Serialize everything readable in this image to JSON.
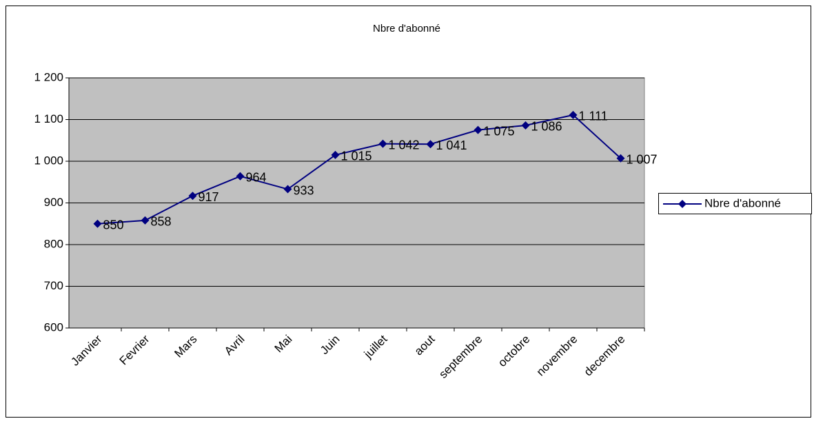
{
  "chart_data": {
    "type": "line",
    "title": "Nbre d'abonné",
    "categories": [
      "Janvier",
      "Fevrier",
      "Mars",
      "Avril",
      "Mai",
      "Juin",
      "juillet",
      "aout",
      "septembre",
      "octobre",
      "novembre",
      "decembre"
    ],
    "series": [
      {
        "name": "Nbre d'abonné",
        "color": "#000080",
        "values": [
          850,
          858,
          917,
          964,
          933,
          1015,
          1042,
          1041,
          1075,
          1086,
          1111,
          1007
        ],
        "value_labels": [
          "850",
          "858",
          "917",
          "964",
          "933",
          "1 015",
          "1 042",
          "1 041",
          "1 075",
          "1 086",
          "1 111",
          "1 007"
        ]
      }
    ],
    "ylim": [
      600,
      1200
    ],
    "yticks": [
      600,
      700,
      800,
      900,
      {
        "value": 1000,
        "label": "1 000"
      },
      {
        "value": 1100,
        "label": "1 100"
      },
      {
        "value": 1200,
        "label": "1 200"
      }
    ],
    "grid": true,
    "legend": "right"
  }
}
